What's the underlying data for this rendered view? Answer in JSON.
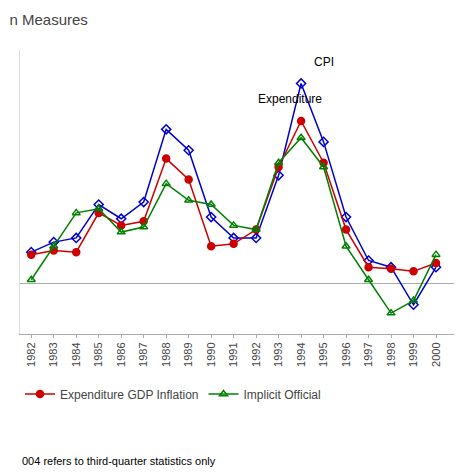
{
  "chart_data": {
    "type": "line",
    "title": "n Measures",
    "x": [
      1982,
      1983,
      1984,
      1985,
      1986,
      1987,
      1988,
      1989,
      1990,
      1991,
      1992,
      1993,
      1994,
      1995,
      1996,
      1997,
      1998,
      1999,
      2000
    ],
    "series": [
      {
        "color": "#0000cc",
        "marker": "diamond-open",
        "values": [
          3.8,
          5.0,
          5.5,
          9.5,
          7.8,
          9.8,
          18.5,
          16.0,
          8.0,
          5.5,
          5.5,
          13.0,
          24.0,
          17.0,
          8.0,
          2.8,
          2.0,
          -2.5,
          2.0
        ]
      },
      {
        "name": "Expenditure GDP Inflation",
        "color": "#cc0000",
        "marker": "circle",
        "values": [
          3.5,
          4.0,
          3.8,
          8.5,
          7.0,
          7.5,
          15.0,
          12.5,
          4.5,
          4.8,
          6.5,
          14.0,
          19.5,
          14.5,
          6.5,
          2.0,
          1.8,
          1.5,
          2.5
        ]
      },
      {
        "name": "Implicit Official",
        "color": "#008000",
        "marker": "triangle-up-open",
        "values": [
          0.5,
          4.5,
          8.5,
          9.0,
          6.2,
          6.8,
          12.0,
          10.0,
          9.5,
          7.0,
          6.5,
          14.5,
          17.5,
          14.0,
          4.5,
          0.5,
          -3.5,
          -2.0,
          3.5
        ]
      }
    ],
    "annotations": [
      {
        "text": "Expenditure",
        "x": 1992,
        "y": 21
      },
      {
        "text": "CPI",
        "x": 1994.5,
        "y": 25.5
      }
    ],
    "footnote": "004 refers to third-quarter statistics only",
    "xlim": [
      1981.5,
      2000.8
    ],
    "xticks": [
      1982,
      1983,
      1984,
      1985,
      1986,
      1987,
      1988,
      1989,
      1990,
      1991,
      1992,
      1993,
      1994,
      1995,
      1996,
      1997,
      1998,
      1999,
      2000
    ],
    "ylim": [
      -6,
      28
    ],
    "tick_labels": "x",
    "grid": false,
    "legend": "bottom left"
  }
}
